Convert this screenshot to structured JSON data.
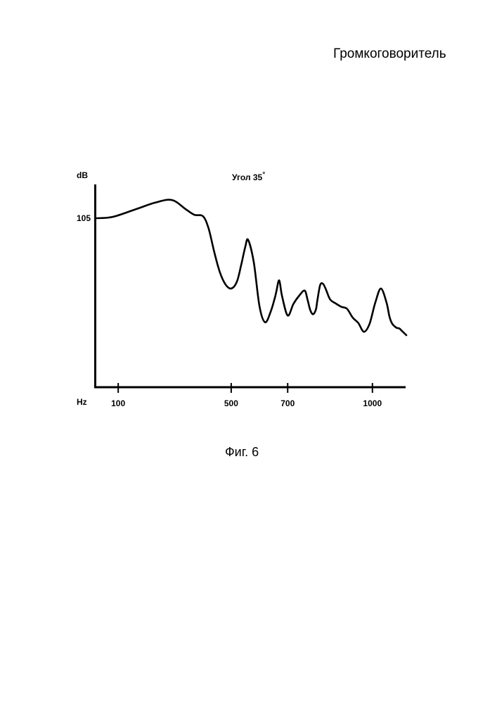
{
  "document": {
    "title": "Громкоговоритель",
    "figure_caption": "Фиг. 6"
  },
  "chart_data": {
    "type": "line",
    "title": "Угол 35",
    "title_degree": "°",
    "xlabel": "Hz",
    "ylabel": "dB",
    "x_ticks": [
      {
        "value": 100,
        "label": "100"
      },
      {
        "value": 500,
        "label": "500"
      },
      {
        "value": 700,
        "label": "700"
      },
      {
        "value": 1000,
        "label": "1000"
      }
    ],
    "y_ticks": [
      {
        "value": 105,
        "label": "105"
      }
    ],
    "xlim": [
      20,
      1120
    ],
    "ylim": [
      80,
      110
    ],
    "series": [
      {
        "x": [
          20,
          80,
          160,
          230,
          290,
          340,
          370,
          400,
          420,
          440,
          460,
          480,
          500,
          520,
          535,
          550,
          560,
          580,
          600,
          620,
          640,
          655,
          660,
          670,
          680,
          700,
          720,
          740,
          760,
          770,
          780,
          790,
          800,
          805,
          815,
          825,
          835,
          850,
          870,
          890,
          910,
          930,
          950,
          970,
          990,
          1010,
          1030,
          1050,
          1060,
          1070,
          1085,
          1095,
          1105,
          1115,
          1120
        ],
        "y": [
          105,
          105.2,
          106.3,
          107.3,
          107.7,
          106.3,
          105.5,
          105.3,
          103.5,
          100,
          97,
          95.2,
          94.6,
          95.6,
          98,
          100.8,
          101.8,
          98.5,
          92,
          89.6,
          91.2,
          93.3,
          94.2,
          95.8,
          93.5,
          90.6,
          92.3,
          93.5,
          94.3,
          93,
          91.4,
          90.8,
          91.5,
          92.8,
          95.1,
          95.3,
          94.5,
          93,
          92.4,
          91.9,
          91.6,
          90.3,
          89.5,
          88.2,
          89.4,
          92.5,
          94.6,
          92.5,
          90.5,
          89.4,
          88.8,
          88.7,
          88.3,
          87.9,
          87.7
        ]
      }
    ],
    "grid": false,
    "legend": "none"
  }
}
